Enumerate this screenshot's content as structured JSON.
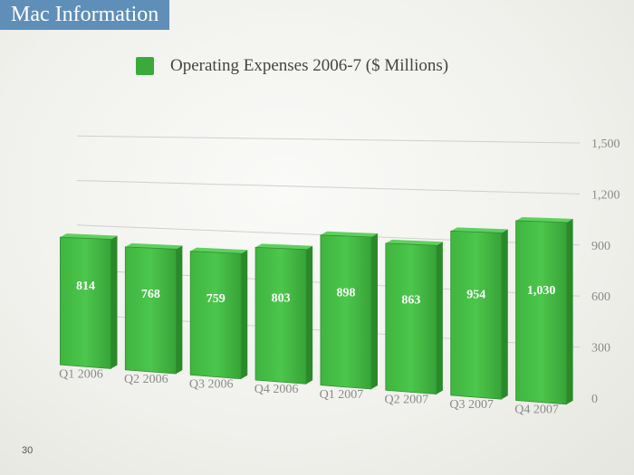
{
  "header": {
    "title": "Mac Information"
  },
  "page_number": "30",
  "colors": {
    "bar": "#3aab3a",
    "bar_side": "#2a8a2a",
    "title_bg": "#5f8fb8"
  },
  "chart_data": {
    "type": "bar",
    "title": "",
    "legend": [
      "Operating Expenses 2006-7 ($ Millions)"
    ],
    "categories": [
      "Q1 2006",
      "Q2 2006",
      "Q3 2006",
      "Q4 2006",
      "Q1 2007",
      "Q2 2007",
      "Q3 2007",
      "Q4 2007"
    ],
    "series": [
      {
        "name": "Operating Expenses 2006-7 ($ Millions)",
        "values": [
          814,
          768,
          759,
          803,
          898,
          863,
          954,
          1030
        ]
      }
    ],
    "value_labels": [
      "814",
      "768",
      "759",
      "803",
      "898",
      "863",
      "954",
      "1,030"
    ],
    "y_ticks": [
      "0",
      "300",
      "600",
      "900",
      "1,200",
      "1,500"
    ],
    "ylim": [
      0,
      1500
    ],
    "xlabel": "",
    "ylabel": "",
    "grid": true,
    "legend_position": "top"
  }
}
